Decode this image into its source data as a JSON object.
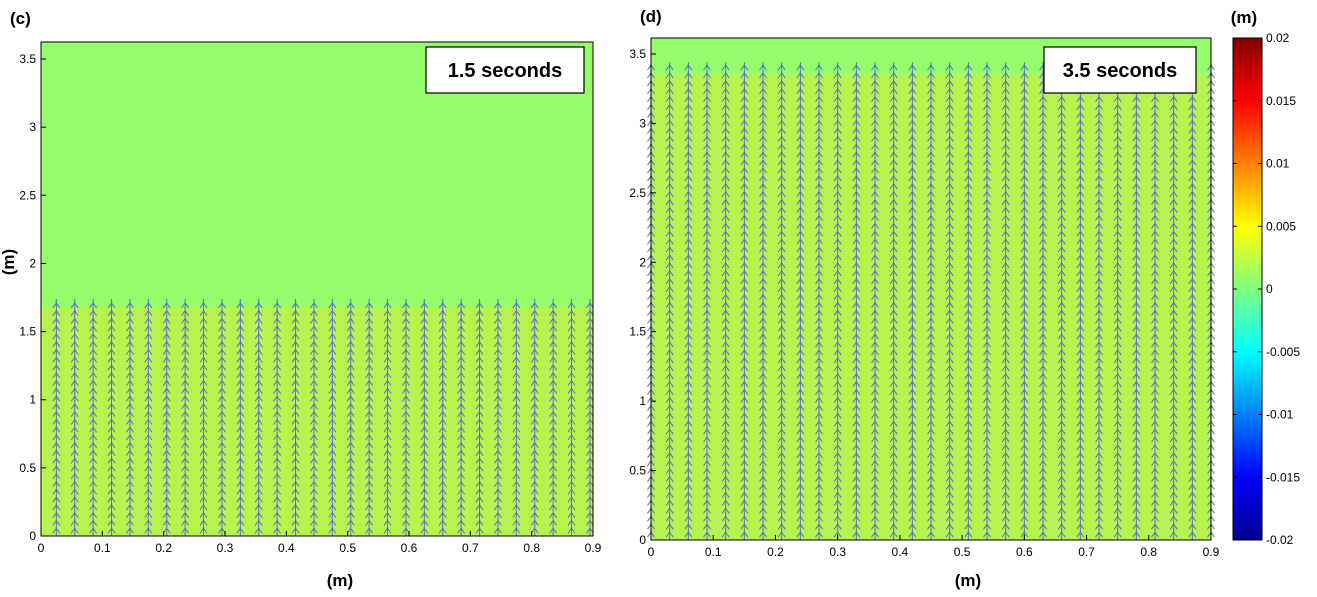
{
  "chart_data": [
    {
      "type": "heatmap",
      "panel_label": "(c)",
      "annotation": "1.5 seconds",
      "xlabel": "(m)",
      "ylabel": "(m)",
      "xlim": [
        0,
        0.9
      ],
      "ylim": [
        0,
        3.62
      ],
      "xticks": [
        "0",
        "0.1",
        "0.2",
        "0.3",
        "0.4",
        "0.5",
        "0.6",
        "0.7",
        "0.8",
        "0.9"
      ],
      "yticks": [
        "0",
        "0.5",
        "1",
        "1.5",
        "2",
        "2.5",
        "3",
        "3.5"
      ],
      "field_regions": [
        {
          "y_from": 0,
          "y_to": 1.68,
          "value": 0.003
        },
        {
          "y_from": 1.68,
          "y_to": 3.62,
          "value": 0.001
        }
      ],
      "vectors": {
        "direction": "up",
        "x_start": 0.025,
        "x_step": 0.03,
        "x_count": 30,
        "y_start": 0.0,
        "y_step": 0.057,
        "y_max": 1.74
      }
    },
    {
      "type": "heatmap",
      "panel_label": "(d)",
      "annotation": "3.5 seconds",
      "xlabel": "(m)",
      "ylabel": "",
      "xlim": [
        0,
        0.9
      ],
      "ylim": [
        0,
        3.62
      ],
      "xticks": [
        "0",
        "0.1",
        "0.2",
        "0.3",
        "0.4",
        "0.5",
        "0.6",
        "0.7",
        "0.8",
        "0.9"
      ],
      "yticks": [
        "0",
        "0.5",
        "1",
        "1.5",
        "2",
        "2.5",
        "3",
        "3.5"
      ],
      "field_regions": [
        {
          "y_from": 0,
          "y_to": 3.35,
          "value": 0.003
        },
        {
          "y_from": 3.35,
          "y_to": 3.62,
          "value": 0.001
        }
      ],
      "vectors": {
        "direction": "up",
        "x_start": 0.0,
        "x_step": 0.03,
        "x_count": 31,
        "y_start": 0.0,
        "y_step": 0.057,
        "y_max": 3.44
      }
    }
  ],
  "colorbar": {
    "title": "(m)",
    "range": [
      -0.02,
      0.02
    ],
    "ticks": [
      "0.02",
      "0.015",
      "0.01",
      "0.005",
      "0",
      "-0.005",
      "-0.01",
      "-0.015",
      "-0.02"
    ],
    "colormap": "jet"
  },
  "colors": {
    "upper_fill": "#95FC6B",
    "lower_fill": "#B8F24E",
    "arrow": "#5A6FC8"
  }
}
